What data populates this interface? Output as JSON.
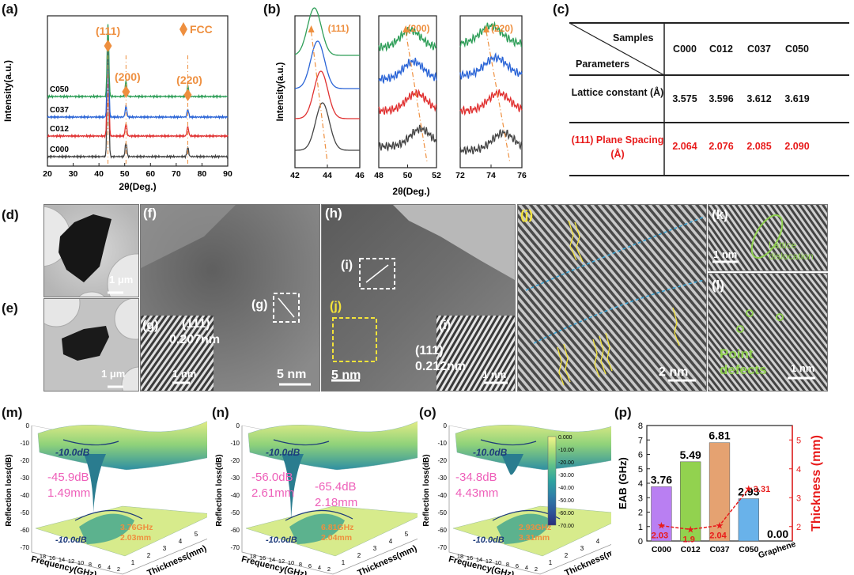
{
  "panel_labels": {
    "a": "(a)",
    "b": "(b)",
    "c": "(c)",
    "d": "(d)",
    "e": "(e)",
    "f": "(f)",
    "h": "(h)",
    "j": "(j)",
    "k": "(k)",
    "l": "(l)",
    "m": "(m)",
    "n": "(n)",
    "o": "(o)",
    "p": "(p)"
  },
  "chart_data": [
    {
      "id": "a",
      "type": "line",
      "xlabel": "2θ(Deg.)",
      "ylabel": "Intensity(a.u.)",
      "xlim": [
        20,
        90
      ],
      "xticks": [
        "20",
        "30",
        "40",
        "50",
        "60",
        "70",
        "80",
        "90"
      ],
      "legend_marker": "FCC",
      "peak_labels": [
        "(111)",
        "(200)",
        "(220)"
      ],
      "peaks": [
        43.5,
        50.5,
        74.5
      ],
      "series": [
        {
          "name": "C000",
          "color": "#444444"
        },
        {
          "name": "C012",
          "color": "#e03030"
        },
        {
          "name": "C037",
          "color": "#2a64d6"
        },
        {
          "name": "C050",
          "color": "#2e9e58"
        }
      ]
    },
    {
      "id": "b",
      "type": "line",
      "xlabel": "2θ(Deg.)",
      "ylabel": "Intensity(a.u.)",
      "subplots": [
        {
          "peak_label": "(111)",
          "xticks": [
            "42",
            "44",
            "46"
          ],
          "xlim": [
            42,
            46
          ]
        },
        {
          "peak_label": "(200)",
          "xticks": [
            "48",
            "50",
            "52"
          ],
          "xlim": [
            48,
            52
          ]
        },
        {
          "peak_label": "(220)",
          "xticks": [
            "72",
            "74",
            "76"
          ],
          "xlim": [
            72,
            76
          ]
        }
      ]
    },
    {
      "id": "c",
      "type": "table",
      "header_top": "Samples",
      "header_bottom": "Parameters",
      "columns": [
        "C000",
        "C012",
        "C037",
        "C050"
      ],
      "rows": [
        {
          "label": "Lattice constant (Å)",
          "values": [
            "3.575",
            "3.596",
            "3.612",
            "3.619"
          ],
          "color": "#111111"
        },
        {
          "label": "(111) Plane Spacing (Å)",
          "values": [
            "2.064",
            "2.076",
            "2.085",
            "2.090"
          ],
          "color": "#e81b1b"
        }
      ]
    },
    {
      "id": "m",
      "type": "surface3d",
      "zlabel": "Reflection loss(dB)",
      "xlabel": "Frequency(GHz)",
      "ylabel": "Thickness(mm)",
      "zticks": [
        "0",
        "-10",
        "-20",
        "-30",
        "-40",
        "-50",
        "-60",
        "-70"
      ],
      "xticks": [
        "2",
        "4",
        "6",
        "8",
        "10",
        "12",
        "14",
        "16",
        "18"
      ],
      "yticks": [
        "1",
        "2",
        "3",
        "4",
        "5"
      ],
      "contour_label": "-10.0dB",
      "min_label": [
        "-45.9dB",
        "1.49mm"
      ],
      "eab_label": [
        "3.76GHz",
        "2.03mm"
      ]
    },
    {
      "id": "n",
      "type": "surface3d",
      "zlabel": "Reflection loss(dB)",
      "xlabel": "Frequency(GHz)",
      "ylabel": "Thickness(mm)",
      "zticks": [
        "0",
        "-10",
        "-20",
        "-30",
        "-40",
        "-50",
        "-60",
        "-70"
      ],
      "xticks": [
        "2",
        "4",
        "6",
        "8",
        "10",
        "12",
        "14",
        "16",
        "18"
      ],
      "yticks": [
        "1",
        "2",
        "3",
        "4",
        "5"
      ],
      "contour_label": "-10.0dB",
      "min_label": [
        "-56.0dB",
        "2.61mm"
      ],
      "min_label2": [
        "-65.4dB",
        "2.18mm"
      ],
      "eab_label": [
        "6.81GHz",
        "2.04mm"
      ]
    },
    {
      "id": "o",
      "type": "surface3d",
      "zlabel": "Reflection loss(dB)",
      "xlabel": "Frequency(GHz)",
      "ylabel": "Thickness(mm)",
      "zticks": [
        "0",
        "-10",
        "-20",
        "-30",
        "-40",
        "-50",
        "-60",
        "-70"
      ],
      "xticks": [
        "2",
        "4",
        "6",
        "8",
        "10",
        "12",
        "14",
        "16",
        "18"
      ],
      "yticks": [
        "1",
        "2",
        "3",
        "4",
        "5"
      ],
      "contour_label": "-10.0dB",
      "min_label": [
        "-34.8dB",
        "4.43mm"
      ],
      "eab_label": [
        "2.93GHz",
        "3.31mm"
      ],
      "colorbar_ticks": [
        "0.000",
        "-10.00",
        "-20.00",
        "-30.00",
        "-40.00",
        "-50.00",
        "-60.00",
        "-70.00"
      ]
    },
    {
      "id": "p",
      "type": "bar",
      "categories": [
        "C000",
        "C012",
        "C037",
        "C050",
        "Graphene"
      ],
      "values": [
        3.76,
        5.49,
        6.81,
        2.93,
        0.0
      ],
      "value_labels": [
        "3.76",
        "5.49",
        "6.81",
        "2.93",
        "0.00"
      ],
      "colors": [
        "#b97ff2",
        "#92d24f",
        "#e5a271",
        "#69b2ea",
        "#aaaaaa"
      ],
      "ylabel": "EAB (GHz)",
      "ylim": [
        0,
        8
      ],
      "yticks": [
        "0",
        "1",
        "2",
        "3",
        "4",
        "5",
        "6",
        "7",
        "8"
      ],
      "y2label": "Thickness (mm)",
      "y2lim": [
        1.5,
        5.5
      ],
      "y2ticks": [
        "2",
        "3",
        "4",
        "5"
      ],
      "thickness": [
        2.03,
        1.9,
        2.04,
        3.31
      ],
      "thickness_labels": [
        "2.03",
        "1.9",
        "2.04",
        "3.31"
      ]
    }
  ],
  "tem": {
    "d_scale": "1 μm",
    "e_scale": "1 μm",
    "f_scale": "5 nm",
    "f_inset_label": "(g)",
    "f_marker": "(g)",
    "f_plane": "(111)",
    "f_spacing": "0.207nm",
    "f_inset_scale": "1 nm",
    "h_marker_i": "(i)",
    "h_marker_j": "(j)",
    "h_inset_label": "(i)",
    "h_plane": "(111)",
    "h_spacing": "0.212nm",
    "h_scale": "5 nm",
    "h_inset_scale": "1 nm",
    "j_scale": "2 nm",
    "k_scale": "1 nm",
    "k_annotation": "Lattice dislocation",
    "l_scale": "1 nm",
    "l_annotation": "Point defects"
  }
}
